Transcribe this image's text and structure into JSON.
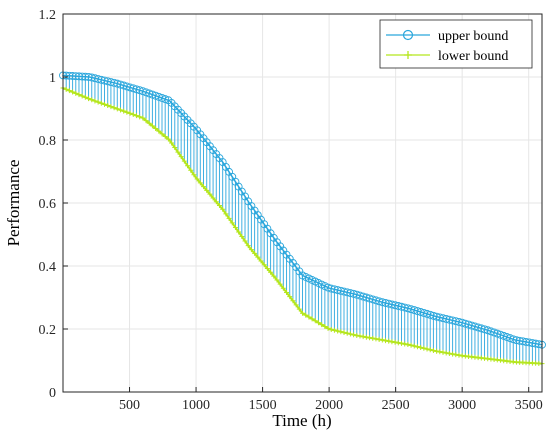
{
  "chart_data": {
    "type": "line",
    "title": "",
    "xlabel": "Time (h)",
    "ylabel": "Performance",
    "xlim": [
      0,
      3600
    ],
    "ylim": [
      0,
      1.2
    ],
    "xticks": [
      500,
      1000,
      1500,
      2000,
      2500,
      3000,
      3500
    ],
    "yticks": [
      0,
      0.2,
      0.4,
      0.6,
      0.8,
      1,
      1.2
    ],
    "xtick_labels": [
      "500",
      "1000",
      "1500",
      "2000",
      "2500",
      "3000",
      "3500"
    ],
    "ytick_labels": [
      "0",
      "0.2",
      "0.4",
      "0.6",
      "0.8",
      "1",
      "1.2"
    ],
    "grid": true,
    "legend_position": "top-right",
    "x": [
      0,
      200,
      400,
      600,
      800,
      1000,
      1200,
      1400,
      1600,
      1800,
      2000,
      2200,
      2400,
      2600,
      2800,
      3000,
      3200,
      3400,
      3600
    ],
    "series": [
      {
        "name": "upper bound",
        "color": "#2aa6dc",
        "marker": "circle",
        "values": [
          1.005,
          1.0,
          0.98,
          0.955,
          0.925,
          0.835,
          0.73,
          0.6,
          0.48,
          0.37,
          0.33,
          0.31,
          0.285,
          0.265,
          0.24,
          0.22,
          0.195,
          0.165,
          0.15
        ]
      },
      {
        "name": "lower bound",
        "color": "#b5e61d",
        "marker": "plus",
        "values": [
          0.965,
          0.93,
          0.9,
          0.87,
          0.8,
          0.68,
          0.58,
          0.46,
          0.36,
          0.25,
          0.2,
          0.18,
          0.165,
          0.15,
          0.13,
          0.115,
          0.105,
          0.095,
          0.09
        ]
      }
    ]
  },
  "legend": {
    "items": [
      "upper bound",
      "lower bound"
    ]
  },
  "colors": {
    "band_fill": "#1fa2dc",
    "upper": "#2aa6dc",
    "lower": "#b5e61d",
    "grid": "#e6e6e6",
    "axis": "#262626"
  }
}
